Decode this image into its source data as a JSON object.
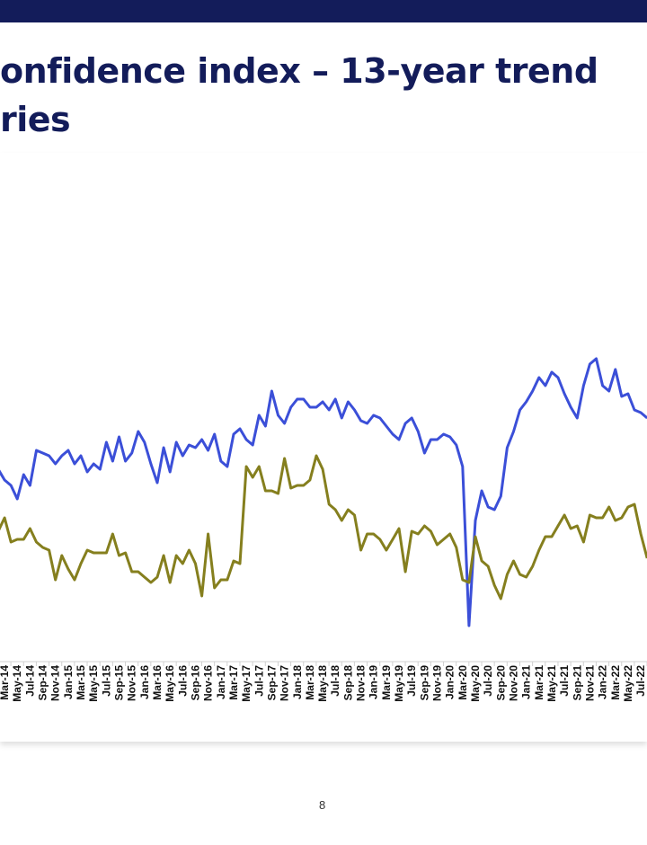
{
  "header": {
    "title_line1": "onfidence index – 13-year trend",
    "title_line2": "ries"
  },
  "page_number": "8",
  "chart_data": {
    "type": "line",
    "title": "",
    "xlabel": "",
    "ylabel": "",
    "ylim": [
      0,
      110
    ],
    "grid": false,
    "x": [
      "Feb-14",
      "Mar-14",
      "Apr-14",
      "May-14",
      "Jun-14",
      "Jul-14",
      "Aug-14",
      "Sep-14",
      "Oct-14",
      "Nov-14",
      "Dec-14",
      "Jan-15",
      "Feb-15",
      "Mar-15",
      "Apr-15",
      "May-15",
      "Jun-15",
      "Jul-15",
      "Aug-15",
      "Sep-15",
      "Oct-15",
      "Nov-15",
      "Dec-15",
      "Jan-16",
      "Feb-16",
      "Mar-16",
      "Apr-16",
      "May-16",
      "Jun-16",
      "Jul-16",
      "Aug-16",
      "Sep-16",
      "Oct-16",
      "Nov-16",
      "Dec-16",
      "Jan-17",
      "Feb-17",
      "Mar-17",
      "Apr-17",
      "May-17",
      "Jun-17",
      "Jul-17",
      "Aug-17",
      "Sep-17",
      "Oct-17",
      "Nov-17",
      "Dec-17",
      "Jan-18",
      "Feb-18",
      "Mar-18",
      "Apr-18",
      "May-18",
      "Jun-18",
      "Jul-18",
      "Aug-18",
      "Sep-18",
      "Oct-18",
      "Nov-18",
      "Dec-18",
      "Jan-19",
      "Feb-19",
      "Mar-19",
      "Apr-19",
      "May-19",
      "Jun-19",
      "Jul-19",
      "Aug-19",
      "Sep-19",
      "Oct-19",
      "Nov-19",
      "Dec-19",
      "Jan-20",
      "Feb-20",
      "Mar-20",
      "Apr-20",
      "May-20",
      "Jun-20",
      "Jul-20",
      "Aug-20",
      "Sep-20",
      "Oct-20",
      "Nov-20",
      "Dec-20",
      "Jan-21",
      "Feb-21",
      "Mar-21",
      "Apr-21",
      "May-21",
      "Jun-21",
      "Jul-21",
      "Aug-21",
      "Sep-21",
      "Oct-21",
      "Nov-21",
      "Dec-21",
      "Jan-22",
      "Feb-22",
      "Mar-22",
      "Apr-22",
      "May-22",
      "Jun-22",
      "Jul-22",
      "Aug-22"
    ],
    "x_tick_labels": [
      "Mar-14",
      "May-14",
      "Jul-14",
      "Sep-14",
      "Nov-14",
      "Jan-15",
      "Mar-15",
      "May-15",
      "Jul-15",
      "Sep-15",
      "Nov-15",
      "Jan-16",
      "Mar-16",
      "May-16",
      "Jul-16",
      "Sep-16",
      "Nov-16",
      "Jan-17",
      "Mar-17",
      "May-17",
      "Jul-17",
      "Sep-17",
      "Nov-17",
      "Jan-18",
      "Mar-18",
      "May-18",
      "Jul-18",
      "Sep-18",
      "Nov-18",
      "Jan-19",
      "Mar-19",
      "May-19",
      "Jul-19",
      "Sep-19",
      "Nov-19",
      "Jan-20",
      "Mar-20",
      "May-20",
      "Jul-20",
      "Sep-20",
      "Nov-20",
      "Jan-21",
      "Mar-21",
      "May-21",
      "Jul-21",
      "Sep-21",
      "Nov-21",
      "Jan-22",
      "Mar-22",
      "May-22",
      "Jul-22"
    ],
    "series": [
      {
        "color": "#3b4fd8",
        "values": [
          66,
          62,
          60,
          55,
          64,
          60,
          73,
          72,
          71,
          68,
          71,
          73,
          68,
          71,
          65,
          68,
          66,
          76,
          69,
          78,
          69,
          72,
          80,
          76,
          68,
          61,
          74,
          65,
          76,
          71,
          75,
          74,
          77,
          73,
          79,
          69,
          67,
          79,
          81,
          77,
          75,
          86,
          82,
          95,
          86,
          83,
          89,
          92,
          92,
          89,
          89,
          91,
          88,
          92,
          85,
          91,
          88,
          84,
          83,
          86,
          85,
          82,
          79,
          77,
          83,
          85,
          80,
          72,
          77,
          77,
          79,
          78,
          75,
          67,
          8,
          47,
          58,
          52,
          51,
          56,
          74,
          80,
          88,
          91,
          95,
          100,
          97,
          102,
          100,
          94,
          89,
          85,
          97,
          105,
          107,
          97,
          95,
          103,
          93,
          94,
          88,
          87,
          85
        ]
      },
      {
        "color": "#857f1e",
        "values": [
          43,
          48,
          39,
          40,
          40,
          44,
          39,
          37,
          36,
          25,
          34,
          29,
          25,
          31,
          36,
          35,
          35,
          35,
          42,
          34,
          35,
          28,
          28,
          26,
          24,
          26,
          34,
          24,
          34,
          31,
          36,
          31,
          19,
          42,
          22,
          25,
          25,
          32,
          31,
          67,
          63,
          67,
          58,
          58,
          57,
          70,
          59,
          60,
          60,
          62,
          71,
          66,
          53,
          51,
          47,
          51,
          49,
          36,
          42,
          42,
          40,
          36,
          40,
          44,
          28,
          43,
          42,
          45,
          43,
          38,
          40,
          42,
          37,
          25,
          24,
          41,
          32,
          30,
          23,
          18,
          27,
          32,
          27,
          26,
          30,
          36,
          41,
          41,
          45,
          49,
          44,
          45,
          39,
          49,
          48,
          48,
          52,
          47,
          48,
          52,
          53,
          42,
          33
        ]
      }
    ]
  }
}
